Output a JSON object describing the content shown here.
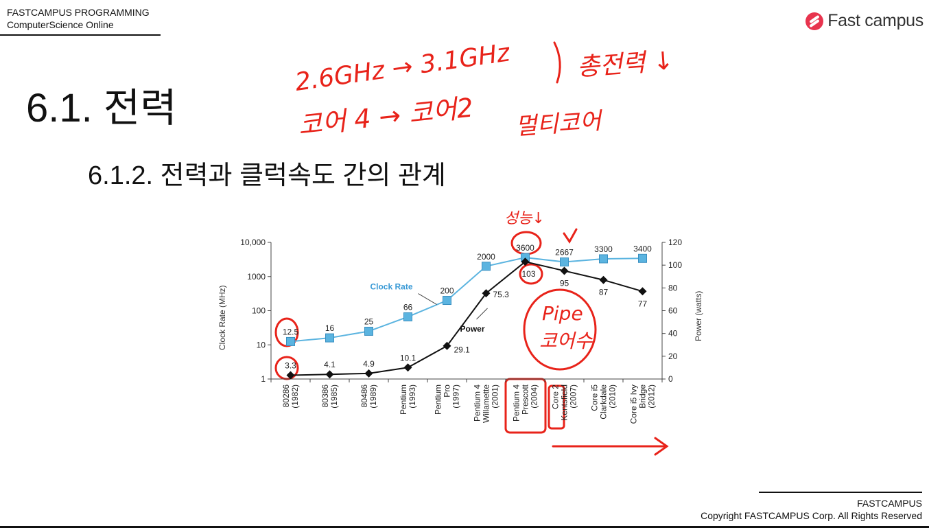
{
  "header": {
    "line1": "FASTCAMPUS PROGRAMMING",
    "line2": "ComputerScience Online",
    "logo_text": "Fast campus"
  },
  "slide": {
    "title": "6.1. 전력",
    "subtitle": "6.1.2. 전력과 클럭속도 간의 관계"
  },
  "annotations": {
    "note1": "2.6GHz → 3.1GHz",
    "note2": "코어 4 → 코어2",
    "note3": "총전력 ↓",
    "note4": "멀티코어",
    "note5": "성능↓",
    "note6": "Pipe",
    "note7": "코어수",
    "color": "#e8231a"
  },
  "chart_data": {
    "type": "line",
    "categories": [
      "80286 (1982)",
      "80386 (1985)",
      "80486 (1989)",
      "Pentium (1993)",
      "Pentium Pro (1997)",
      "Pentium 4 Willamette (2001)",
      "Pentium 4 Prescott (2004)",
      "Core 2 Kentsfield (2007)",
      "Core i5 Clarkdale (2010)",
      "Core i5 Ivy Bridge (2012)"
    ],
    "series": [
      {
        "name": "Clock Rate",
        "axis": "left",
        "values": [
          12.5,
          16,
          25,
          66,
          200,
          2000,
          3600,
          2667,
          3300,
          3400
        ],
        "color": "#5bb4e0",
        "marker": "square"
      },
      {
        "name": "Power",
        "axis": "right",
        "values": [
          3.3,
          4.1,
          4.9,
          10.1,
          29.1,
          75.3,
          103,
          95,
          87,
          77
        ],
        "color": "#111111",
        "marker": "diamond"
      }
    ],
    "clock_labels": [
      "12.5",
      "16",
      "25",
      "66",
      "200",
      "2000",
      "3600",
      "2667",
      "3300",
      "3400"
    ],
    "power_labels": [
      "3.3",
      "4.1",
      "4.9",
      "10.1",
      "29.1",
      "75.3",
      "103",
      "95",
      "87",
      "77"
    ],
    "ylabel": "Clock Rate (MHz)",
    "y2label": "Power (watts)",
    "yscale": "log",
    "ylim": [
      1,
      10000
    ],
    "yticks": [
      "1",
      "10",
      "100",
      "1000",
      "10,000"
    ],
    "y2lim": [
      0,
      120
    ],
    "y2ticks": [
      "0",
      "20",
      "40",
      "60",
      "80",
      "100",
      "120"
    ]
  },
  "footer": {
    "line1": "FASTCAMPUS",
    "line2": "Copyright FASTCAMPUS Corp. All Rights Reserved"
  }
}
